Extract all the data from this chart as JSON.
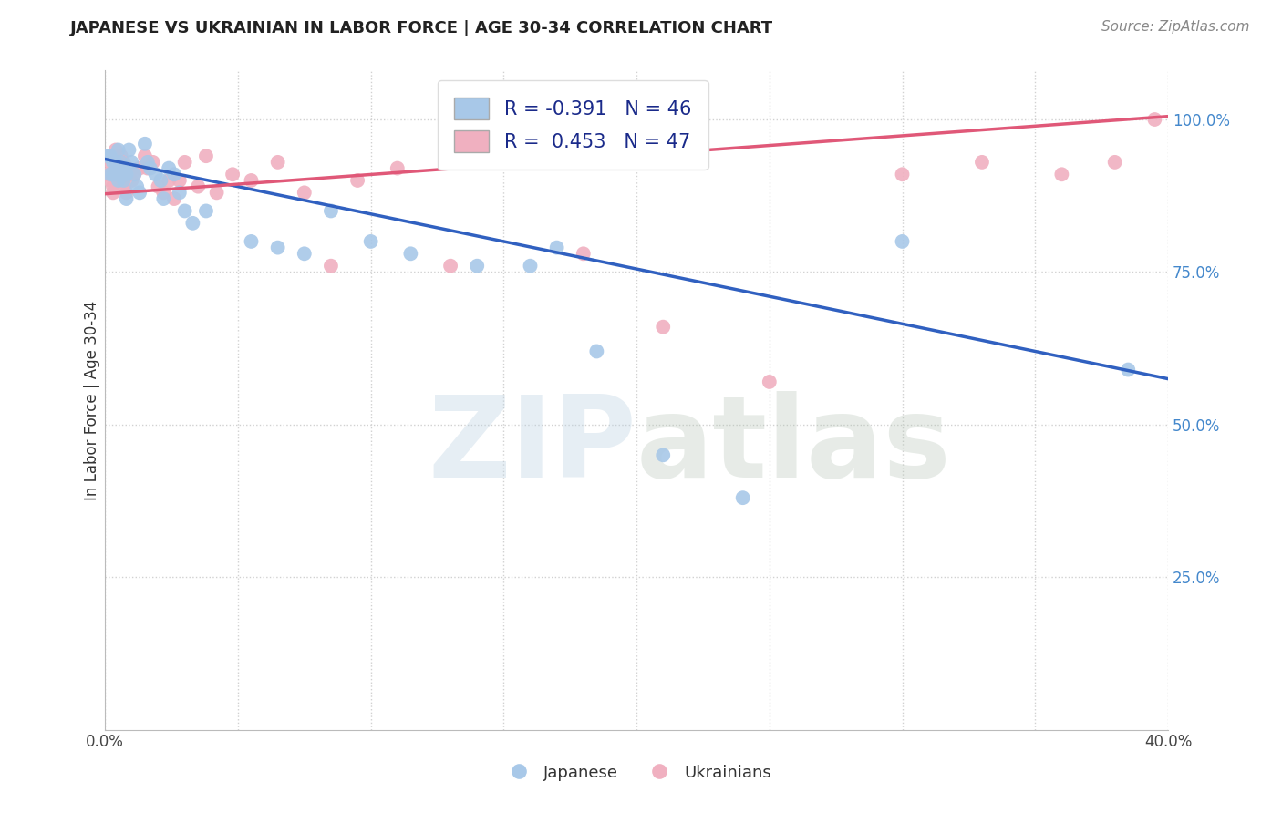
{
  "title": "JAPANESE VS UKRAINIAN IN LABOR FORCE | AGE 30-34 CORRELATION CHART",
  "source": "Source: ZipAtlas.com",
  "ylabel_text": "In Labor Force | Age 30-34",
  "xlim": [
    0.0,
    0.4
  ],
  "ylim": [
    0.0,
    1.08
  ],
  "xticks": [
    0.0,
    0.05,
    0.1,
    0.15,
    0.2,
    0.25,
    0.3,
    0.35,
    0.4
  ],
  "xticklabels": [
    "0.0%",
    "",
    "",
    "",
    "",
    "",
    "",
    "",
    "40.0%"
  ],
  "yticks": [
    0.25,
    0.5,
    0.75,
    1.0
  ],
  "yticklabels": [
    "25.0%",
    "50.0%",
    "75.0%",
    "100.0%"
  ],
  "background_color": "#ffffff",
  "grid_color": "#cccccc",
  "watermark_zip": "ZIP",
  "watermark_atlas": "atlas",
  "japanese_color": "#a8c8e8",
  "ukrainian_color": "#f0b0c0",
  "japanese_line_color": "#3060c0",
  "ukrainian_line_color": "#e05878",
  "japanese_R": -0.391,
  "japanese_N": 46,
  "ukrainian_R": 0.453,
  "ukrainian_N": 47,
  "japanese_x": [
    0.001,
    0.002,
    0.002,
    0.003,
    0.003,
    0.004,
    0.004,
    0.005,
    0.005,
    0.006,
    0.006,
    0.007,
    0.007,
    0.008,
    0.008,
    0.009,
    0.01,
    0.011,
    0.012,
    0.013,
    0.015,
    0.016,
    0.017,
    0.019,
    0.021,
    0.022,
    0.024,
    0.026,
    0.028,
    0.03,
    0.033,
    0.038,
    0.055,
    0.065,
    0.075,
    0.085,
    0.1,
    0.115,
    0.14,
    0.16,
    0.17,
    0.185,
    0.21,
    0.24,
    0.3,
    0.385
  ],
  "japanese_y": [
    0.94,
    0.94,
    0.91,
    0.93,
    0.91,
    0.93,
    0.91,
    0.9,
    0.95,
    0.91,
    0.93,
    0.92,
    0.9,
    0.91,
    0.87,
    0.95,
    0.93,
    0.91,
    0.89,
    0.88,
    0.96,
    0.93,
    0.92,
    0.91,
    0.9,
    0.87,
    0.92,
    0.91,
    0.88,
    0.85,
    0.83,
    0.85,
    0.8,
    0.79,
    0.78,
    0.85,
    0.8,
    0.78,
    0.76,
    0.76,
    0.79,
    0.62,
    0.45,
    0.38,
    0.8,
    0.59
  ],
  "ukrainian_x": [
    0.001,
    0.002,
    0.002,
    0.003,
    0.003,
    0.004,
    0.004,
    0.005,
    0.005,
    0.006,
    0.006,
    0.007,
    0.007,
    0.008,
    0.009,
    0.01,
    0.011,
    0.013,
    0.015,
    0.016,
    0.018,
    0.02,
    0.022,
    0.024,
    0.026,
    0.028,
    0.03,
    0.035,
    0.038,
    0.042,
    0.048,
    0.055,
    0.065,
    0.075,
    0.085,
    0.095,
    0.11,
    0.13,
    0.15,
    0.18,
    0.21,
    0.25,
    0.3,
    0.33,
    0.36,
    0.38,
    0.395
  ],
  "ukrainian_y": [
    0.91,
    0.93,
    0.9,
    0.89,
    0.88,
    0.95,
    0.92,
    0.9,
    0.91,
    0.94,
    0.9,
    0.89,
    0.93,
    0.88,
    0.91,
    0.9,
    0.91,
    0.92,
    0.94,
    0.92,
    0.93,
    0.89,
    0.88,
    0.9,
    0.87,
    0.9,
    0.93,
    0.89,
    0.94,
    0.88,
    0.91,
    0.9,
    0.93,
    0.88,
    0.76,
    0.9,
    0.92,
    0.76,
    0.93,
    0.78,
    0.66,
    0.57,
    0.91,
    0.93,
    0.91,
    0.93,
    1.0
  ]
}
